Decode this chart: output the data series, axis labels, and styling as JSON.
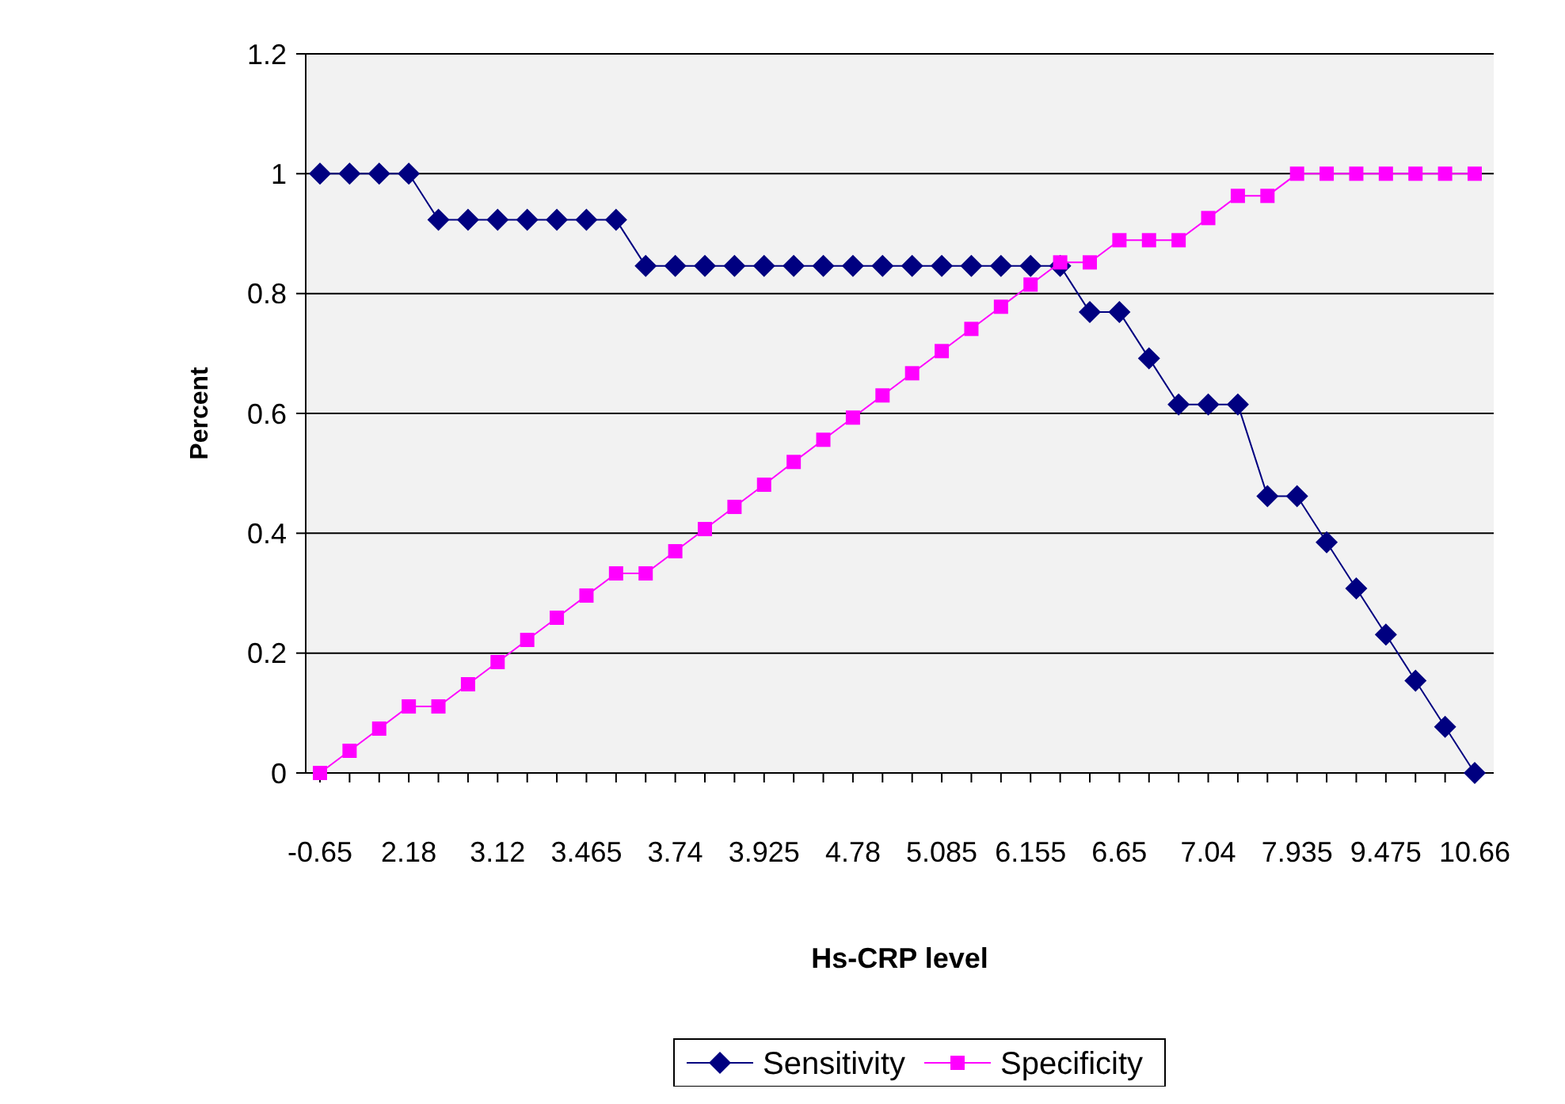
{
  "chart_data": {
    "type": "line",
    "xlabel": "Hs-CRP level",
    "ylabel": "Percent",
    "categories": [
      "-0.65",
      null,
      null,
      "2.18",
      null,
      null,
      "3.12",
      null,
      null,
      "3.465",
      null,
      null,
      "3.74",
      null,
      null,
      "3.925",
      null,
      null,
      "4.78",
      null,
      null,
      "5.085",
      null,
      null,
      "6.155",
      null,
      null,
      "6.65",
      null,
      null,
      "7.04",
      null,
      null,
      "7.935",
      null,
      null,
      "9.475",
      null,
      null,
      "10.66"
    ],
    "series": [
      {
        "name": "Sensitivity",
        "color": "#000080",
        "marker": "diamond",
        "values": [
          1,
          1,
          1,
          1,
          0.923,
          0.923,
          0.923,
          0.923,
          0.923,
          0.923,
          0.923,
          0.846,
          0.846,
          0.846,
          0.846,
          0.846,
          0.846,
          0.846,
          0.846,
          0.846,
          0.846,
          0.846,
          0.846,
          0.846,
          0.846,
          0.846,
          0.769,
          0.769,
          0.692,
          0.615,
          0.615,
          0.615,
          0.462,
          0.462,
          0.385,
          0.308,
          0.231,
          0.154,
          0.077,
          0
        ]
      },
      {
        "name": "Specificity",
        "color": "#ff00ff",
        "marker": "square",
        "values": [
          0,
          0.037,
          0.074,
          0.111,
          0.111,
          0.148,
          0.185,
          0.222,
          0.259,
          0.296,
          0.333,
          0.333,
          0.37,
          0.407,
          0.444,
          0.481,
          0.519,
          0.556,
          0.593,
          0.63,
          0.667,
          0.704,
          0.741,
          0.778,
          0.815,
          0.852,
          0.852,
          0.889,
          0.889,
          0.889,
          0.926,
          0.963,
          0.963,
          1,
          1,
          1,
          1,
          1,
          1,
          1
        ]
      }
    ],
    "ylim": [
      0,
      1.2
    ],
    "yticks": [
      0,
      0.2,
      0.4,
      0.6,
      0.8,
      1,
      1.2
    ],
    "grid": "y",
    "legend": "bottom"
  }
}
